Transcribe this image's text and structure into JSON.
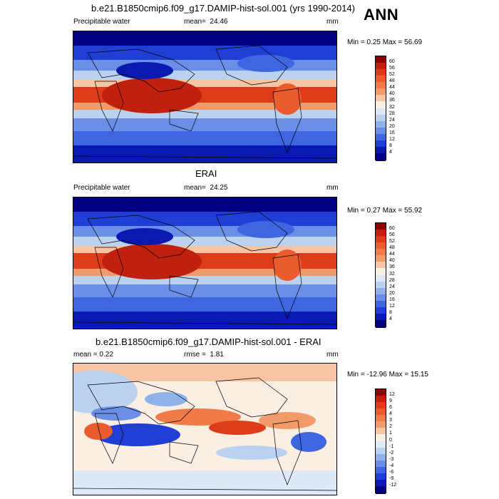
{
  "season": "ANN",
  "panels": [
    {
      "title": "b.e21.B1850cmip6.f09_g17.DAMIP-hist-sol.001 (yrs 1990-2014)",
      "variable": "Precipitable water",
      "stat_label": "mean=",
      "stat_value": "24.46",
      "units": "mm",
      "minmax": "Min =   0.25 Max =  56.69",
      "levels": [
        "60",
        "56",
        "52",
        "48",
        "44",
        "40",
        "36",
        "32",
        "28",
        "24",
        "20",
        "16",
        "12",
        "8",
        "4"
      ],
      "colors": [
        "#8b0000",
        "#c0200e",
        "#dd3b1a",
        "#ea5b2d",
        "#f07a48",
        "#f39a6b",
        "#f7c4a4",
        "#fbeee3",
        "#dde9f7",
        "#bad1f0",
        "#8fb2ea",
        "#6b8fe6",
        "#3d66e0",
        "#1f3fd4",
        "#0a1ab0",
        "#000080"
      ]
    },
    {
      "title": "ERAI",
      "variable": "Precipitable water",
      "stat_label": "mean=",
      "stat_value": "24.25",
      "units": "mm",
      "minmax": "Min =   0.27 Max =  55.92",
      "levels": [
        "60",
        "56",
        "52",
        "48",
        "44",
        "40",
        "36",
        "32",
        "28",
        "24",
        "20",
        "16",
        "12",
        "8",
        "4"
      ],
      "colors": [
        "#8b0000",
        "#c0200e",
        "#dd3b1a",
        "#ea5b2d",
        "#f07a48",
        "#f39a6b",
        "#f7c4a4",
        "#fbeee3",
        "#dde9f7",
        "#bad1f0",
        "#8fb2ea",
        "#6b8fe6",
        "#3d66e0",
        "#1f3fd4",
        "#0a1ab0",
        "#000080"
      ]
    },
    {
      "title": "b.e21.B1850cmip6.f09_g17.DAMIP-hist-sol.001 - ERAI",
      "variable": "mean =   0.22",
      "stat_label": "rmse =",
      "stat_value": "1.81",
      "units": "mm",
      "minmax": "Min = -12.96 Max =  15.15",
      "levels": [
        "12",
        "9",
        "6",
        "4",
        "3",
        "2",
        "1",
        "0",
        "-1",
        "-2",
        "-3",
        "-4",
        "-6",
        "-9",
        "-12"
      ],
      "colors": [
        "#8b0000",
        "#c0200e",
        "#dd3b1a",
        "#ea5b2d",
        "#f07a48",
        "#f39a6b",
        "#f7c4a4",
        "#fbeee3",
        "#dde9f7",
        "#bad1f0",
        "#8fb2ea",
        "#6b8fe6",
        "#3d66e0",
        "#1f3fd4",
        "#0a1ab0",
        "#000080"
      ]
    }
  ]
}
